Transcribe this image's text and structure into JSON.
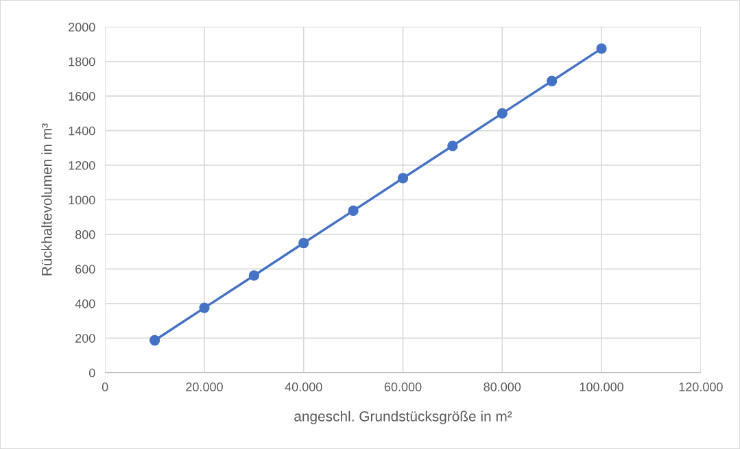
{
  "chart_data": {
    "type": "line",
    "xlabel": "angeschl. Grundstücksgröße in m²",
    "ylabel": "Rückhaltevolumen in m³",
    "x": [
      10000,
      20000,
      30000,
      40000,
      50000,
      60000,
      70000,
      80000,
      90000,
      100000
    ],
    "series": [
      {
        "color": "#4472c4",
        "values": [
          187,
          375,
          562,
          750,
          937,
          1125,
          1312,
          1500,
          1687,
          1875
        ]
      }
    ],
    "xlim": [
      0,
      120000
    ],
    "xticks": [
      0,
      {
        "value": 20000,
        "label": "20.000"
      },
      {
        "value": 40000,
        "label": "40.000"
      },
      {
        "value": 60000,
        "label": "60.000"
      },
      {
        "value": 80000,
        "label": "80.000"
      },
      {
        "value": 100000,
        "label": "100.000"
      },
      {
        "value": 120000,
        "label": "120.000"
      }
    ],
    "ylim": [
      0,
      2000
    ],
    "yticks": [
      0,
      200,
      400,
      600,
      800,
      1000,
      1200,
      1400,
      1600,
      1800,
      2000
    ],
    "grid": true,
    "marker": "circle",
    "line_style": "solid"
  }
}
